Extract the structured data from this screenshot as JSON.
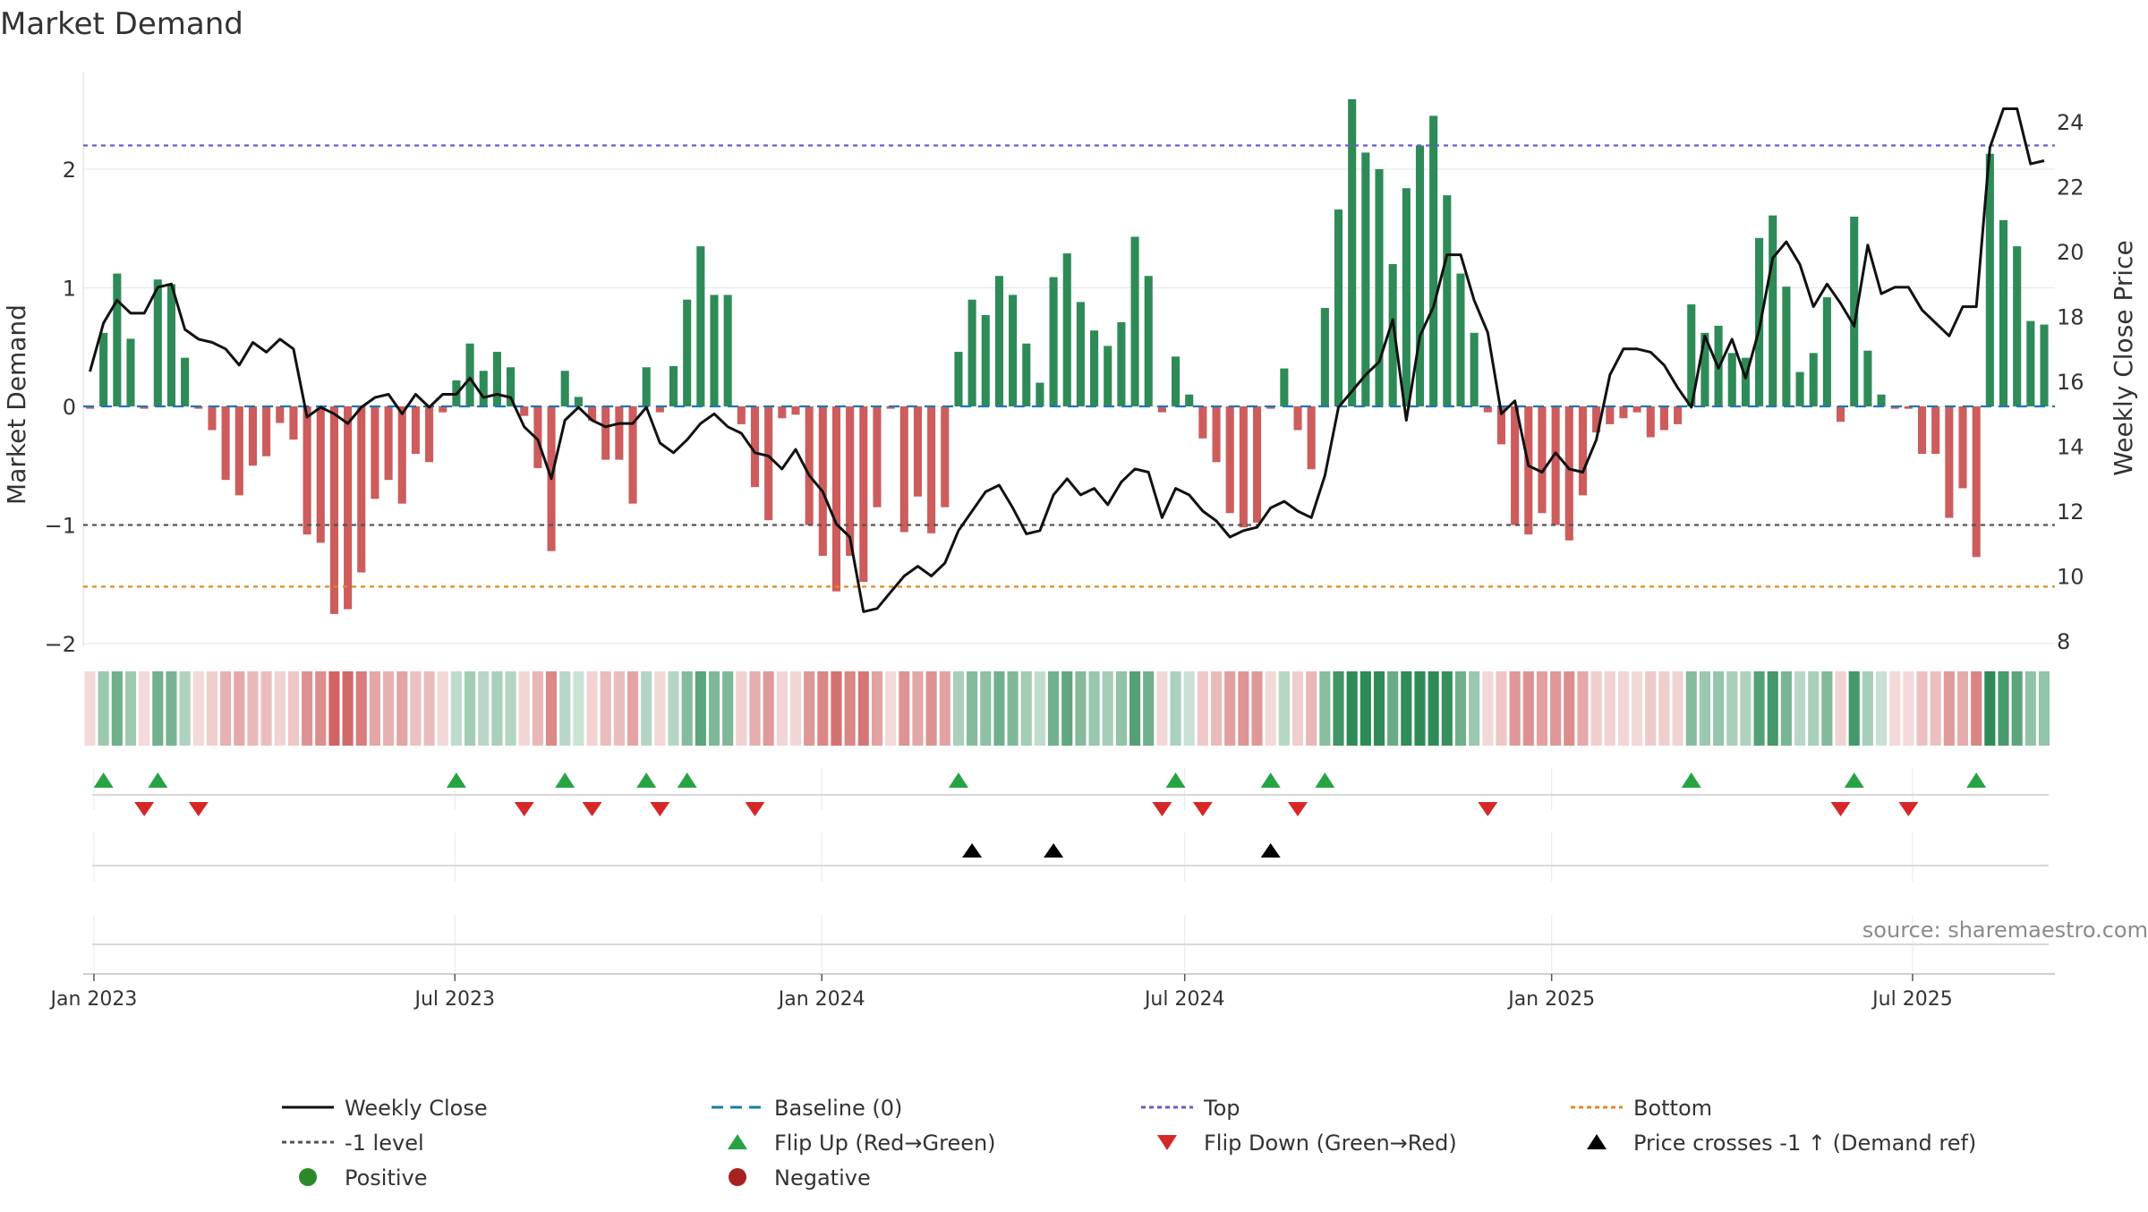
{
  "chart_data": {
    "type": "bar",
    "title": "Market Demand",
    "ylabel_left": "Market Demand",
    "ylabel_right": "Weekly Close Price",
    "ylim_left": [
      -2.0,
      2.6
    ],
    "ylim_right": [
      7.3,
      24.9
    ],
    "yticks_left": [
      2,
      1,
      0,
      -1,
      -2
    ],
    "yticks_left_labels": [
      "2",
      "1",
      "0",
      "−1",
      "−2"
    ],
    "yticks_right": [
      24,
      22,
      20,
      18,
      16,
      14,
      12,
      10,
      8
    ],
    "x_start_date": "2022-12-30",
    "x_end_date": "2025-09-05",
    "x_ticks": [
      {
        "label": "Jan 2023",
        "date": "2023-01-01"
      },
      {
        "label": "Jul 2023",
        "date": "2023-07-01"
      },
      {
        "label": "Jan 2024",
        "date": "2024-01-01"
      },
      {
        "label": "Jul 2024",
        "date": "2024-07-01"
      },
      {
        "label": "Jan 2025",
        "date": "2025-01-01"
      },
      {
        "label": "Jul 2025",
        "date": "2025-07-01"
      }
    ],
    "reference_lines": {
      "top": 2.2,
      "baseline": 0,
      "minus_one": -1.0,
      "bottom": -1.52
    },
    "demand_values": [
      -0.02,
      0.62,
      1.12,
      0.57,
      -0.02,
      1.07,
      1.03,
      0.41,
      -0.02,
      -0.2,
      -0.62,
      -0.75,
      -0.5,
      -0.42,
      -0.14,
      -0.28,
      -1.08,
      -1.15,
      -1.75,
      -1.71,
      -1.4,
      -0.78,
      -0.62,
      -0.82,
      -0.4,
      -0.47,
      -0.05,
      0.22,
      0.53,
      0.3,
      0.46,
      0.33,
      -0.08,
      -0.52,
      -1.22,
      0.3,
      0.08,
      -0.12,
      -0.45,
      -0.45,
      -0.82,
      0.33,
      -0.05,
      0.34,
      0.9,
      1.35,
      0.94,
      0.94,
      -0.15,
      -0.68,
      -0.96,
      -0.1,
      -0.07,
      -1.0,
      -1.26,
      -1.56,
      -1.26,
      -1.48,
      -0.85,
      -0.02,
      -1.06,
      -0.76,
      -1.07,
      -0.85,
      0.46,
      0.9,
      0.77,
      1.1,
      0.94,
      0.53,
      0.2,
      1.09,
      1.29,
      0.88,
      0.64,
      0.51,
      0.71,
      1.43,
      1.1,
      -0.05,
      0.42,
      0.1,
      -0.27,
      -0.47,
      -0.9,
      -1.02,
      -0.98,
      -0.02,
      0.32,
      -0.2,
      -0.53,
      0.83,
      1.66,
      2.59,
      2.14,
      2.0,
      1.2,
      1.84,
      2.2,
      2.45,
      1.78,
      1.12,
      0.62,
      -0.05,
      -0.32,
      -1.0,
      -1.08,
      -0.9,
      -1.0,
      -1.13,
      -0.75,
      -0.22,
      -0.15,
      -0.1,
      -0.05,
      -0.26,
      -0.2,
      -0.15,
      0.86,
      0.62,
      0.68,
      0.45,
      0.41,
      1.42,
      1.61,
      1.01,
      0.29,
      0.45,
      0.92,
      -0.13,
      1.6,
      0.47,
      0.1,
      -0.02,
      -0.02,
      -0.4,
      -0.4,
      -0.94,
      -0.69,
      -1.27,
      2.13,
      1.57,
      1.35,
      0.72,
      0.69
    ],
    "close_values": [
      16.3,
      17.8,
      18.5,
      18.1,
      18.1,
      18.9,
      19.0,
      17.6,
      17.3,
      17.2,
      17.0,
      16.5,
      17.2,
      16.9,
      17.3,
      17.0,
      14.9,
      15.2,
      15.0,
      14.7,
      15.2,
      15.5,
      15.6,
      15.0,
      15.6,
      15.2,
      15.6,
      15.6,
      16.1,
      15.5,
      15.6,
      15.5,
      14.6,
      14.2,
      13.0,
      14.8,
      15.2,
      14.8,
      14.6,
      14.7,
      14.7,
      15.2,
      14.1,
      13.8,
      14.2,
      14.7,
      15.0,
      14.6,
      14.4,
      13.8,
      13.7,
      13.3,
      13.9,
      13.1,
      12.6,
      11.6,
      11.2,
      8.9,
      9.0,
      9.5,
      10.0,
      10.3,
      10.0,
      10.4,
      11.4,
      12.0,
      12.6,
      12.8,
      12.1,
      11.3,
      11.4,
      12.5,
      13.0,
      12.5,
      12.7,
      12.2,
      12.9,
      13.3,
      13.2,
      11.8,
      12.7,
      12.5,
      12.0,
      11.7,
      11.2,
      11.4,
      11.5,
      12.1,
      12.3,
      12.0,
      11.8,
      13.1,
      15.2,
      15.7,
      16.2,
      16.6,
      17.9,
      14.8,
      17.4,
      18.3,
      19.9,
      19.9,
      18.5,
      17.5,
      15.0,
      15.4,
      13.4,
      13.2,
      13.8,
      13.3,
      13.2,
      14.2,
      16.2,
      17.0,
      17.0,
      16.9,
      16.5,
      15.8,
      15.2,
      17.4,
      16.4,
      17.3,
      16.1,
      17.6,
      19.8,
      20.3,
      19.6,
      18.3,
      19.0,
      18.4,
      17.7,
      20.2,
      18.7,
      18.9,
      18.9,
      18.2,
      17.8,
      17.4,
      18.3,
      18.3,
      23.2,
      24.4,
      24.4,
      22.7,
      22.8
    ],
    "flip_up_weeks": [
      1,
      5,
      27,
      35,
      41,
      44,
      64,
      80,
      87,
      91,
      118,
      130,
      139
    ],
    "flip_down_weeks": [
      4,
      8,
      32,
      37,
      42,
      49,
      79,
      82,
      89,
      103,
      129,
      134
    ],
    "price_cross_weeks": [
      65,
      71,
      87
    ],
    "legend": [
      {
        "label": "Weekly Close",
        "symbol": "line-solid",
        "color": "#111111"
      },
      {
        "label": "Baseline (0)",
        "symbol": "line-dashed",
        "color": "#1f77b4"
      },
      {
        "label": "Top",
        "symbol": "line-dotted",
        "color": "#6a5acd"
      },
      {
        "label": "Bottom",
        "symbol": "line-dotted",
        "color": "#e08a1e"
      },
      {
        "label": "-1 level",
        "symbol": "line-dotted",
        "color": "#555555"
      },
      {
        "label": "Flip Up (Red→Green)",
        "symbol": "triangle-up",
        "color": "#27a344"
      },
      {
        "label": "Flip Down (Green→Red)",
        "symbol": "triangle-down",
        "color": "#d62728"
      },
      {
        "label": "Price crosses -1 ↑ (Demand ref)",
        "symbol": "triangle-up",
        "color": "#000000"
      },
      {
        "label": "Positive",
        "symbol": "circle",
        "color": "#2a8a2a"
      },
      {
        "label": "Negative",
        "symbol": "circle",
        "color": "#a82020"
      }
    ],
    "annotation": "source: sharemaestro.com"
  },
  "colors": {
    "positive_bar": "#2e8b57",
    "negative_bar": "#cd5c5c",
    "close_line": "#111111",
    "top_line": "#6a5acd",
    "bottom_line": "#e08a1e",
    "minus_one_line": "#555555",
    "baseline": "#1f77b4",
    "flip_up": "#27a344",
    "flip_down": "#d62728",
    "price_cross": "#000000",
    "grid": "#e9e9e9",
    "text": "#333333",
    "annotation": "#8a8a8a"
  }
}
